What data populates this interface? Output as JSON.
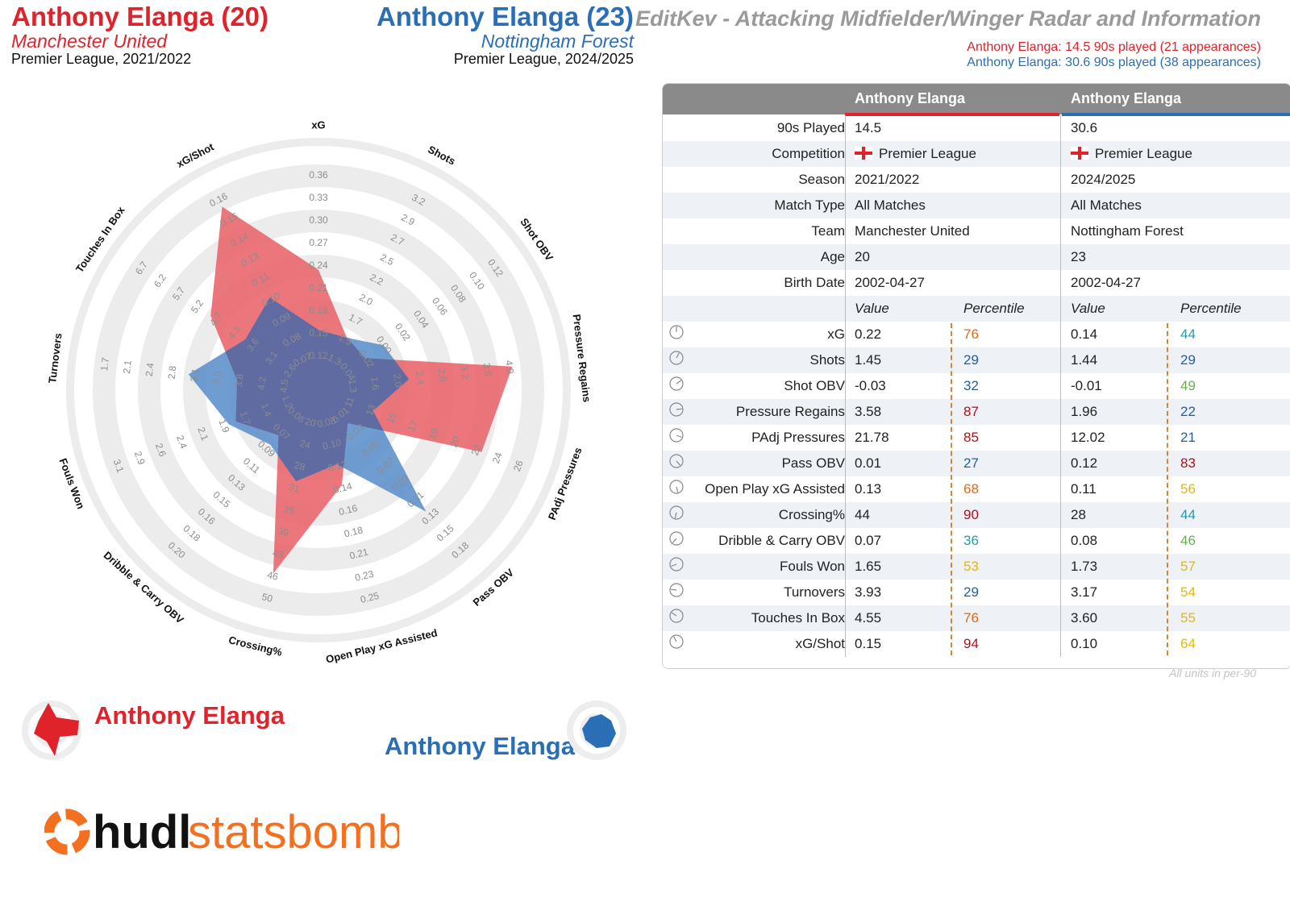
{
  "header": {
    "p1_name": "Anthony Elanga (20)",
    "p1_team": "Manchester United",
    "p1_comp": "Premier League, 2021/2022",
    "p2_name": "Anthony Elanga (23)",
    "p2_team": "Nottingham Forest",
    "p2_comp": "Premier League, 2024/2025",
    "subtitle": "EditKev - Attacking Midfielder/Winger Radar and Information",
    "p1_played": "Anthony Elanga: 14.5 90s played (21 appearances)",
    "p2_played": "Anthony Elanga: 30.6 90s played (38 appearances)"
  },
  "colors": {
    "player1": "#e0222b",
    "player2": "#2a6eb5",
    "fill1": "#e8646b",
    "fill2": "#5b8fcc",
    "overlap": "#5f6ba1"
  },
  "chart_data": {
    "type": "radar",
    "axes": [
      {
        "label": "xG",
        "ticks": [
          "0.12",
          "0.15",
          "0.18",
          "0.21",
          "0.24",
          "0.27",
          "0.30",
          "0.33",
          "0.36"
        ],
        "min": 0.09,
        "max": 0.39
      },
      {
        "label": "Shots",
        "ticks": [
          "1.3",
          "1.5",
          "1.7",
          "2.0",
          "2.2",
          "2.5",
          "2.7",
          "2.9",
          "3.2"
        ],
        "min": 1.05,
        "max": 3.45
      },
      {
        "label": "Shot OBV",
        "ticks": [
          "-0.04",
          "-0.02",
          "0.00",
          "0.02",
          "0.04",
          "0.06",
          "0.08",
          "0.10",
          "0.12"
        ],
        "min": -0.06,
        "max": 0.14
      },
      {
        "label": "Pressure Regains",
        "ticks": [
          "1.3",
          "1.6",
          "2.0",
          "2.4",
          "2.8",
          "3.2",
          "3.6",
          "4.0"
        ],
        "min": 0.9,
        "max": 4.4
      },
      {
        "label": "PAdj Pressures",
        "ticks": [
          "11",
          "13",
          "15",
          "17",
          "19",
          "20",
          "22",
          "24",
          "26"
        ],
        "min": 9,
        "max": 28
      },
      {
        "label": "Pass OBV",
        "ticks": [
          "0.01",
          "0.03",
          "0.05",
          "0.07",
          "0.09",
          "0.11",
          "0.13",
          "0.15",
          "0.18"
        ],
        "min": -0.01,
        "max": 0.2
      },
      {
        "label": "Open Play xG Assisted",
        "ticks": [
          "0.08",
          "0.10",
          "0.12",
          "0.14",
          "0.16",
          "0.18",
          "0.21",
          "0.23",
          "0.25"
        ],
        "min": 0.06,
        "max": 0.27
      },
      {
        "label": "Crossing%",
        "ticks": [
          "20",
          "24",
          "28",
          "31",
          "35",
          "39",
          "43",
          "46",
          "50"
        ],
        "min": 16,
        "max": 54
      },
      {
        "label": "Dribble & Carry OBV",
        "ticks": [
          "0.06",
          "0.07",
          "0.09",
          "0.11",
          "0.13",
          "0.15",
          "0.16",
          "0.18",
          "0.20"
        ],
        "min": 0.04,
        "max": 0.22
      },
      {
        "label": "Fouls Won",
        "ticks": [
          "1.2",
          "1.4",
          "1.7",
          "1.9",
          "2.1",
          "2.4",
          "2.6",
          "2.9",
          "3.1"
        ],
        "min": 0.95,
        "max": 3.35
      },
      {
        "label": "Turnovers",
        "ticks": [
          "4.5",
          "4.2",
          "3.8",
          "3.5",
          "3.1",
          "2.8",
          "2.4",
          "2.1",
          "1.7"
        ],
        "min": 4.85,
        "max": 1.35
      },
      {
        "label": "Touches In Box",
        "ticks": [
          "2.6",
          "3.1",
          "3.6",
          "4.1",
          "4.7",
          "5.2",
          "5.7",
          "6.2",
          "6.7"
        ],
        "min": 2.1,
        "max": 7.2
      },
      {
        "label": "xG/Shot",
        "ticks": [
          "0.07",
          "0.08",
          "0.09",
          "0.10",
          "0.11",
          "0.13",
          "0.14",
          "0.15",
          "0.16"
        ],
        "min": 0.06,
        "max": 0.17
      }
    ],
    "series": [
      {
        "name": "Anthony Elanga",
        "values": [
          0.22,
          1.45,
          -0.03,
          3.58,
          21.78,
          0.01,
          0.13,
          44,
          0.07,
          1.65,
          3.93,
          4.55,
          0.15
        ]
      },
      {
        "name": "Anthony Elanga",
        "values": [
          0.14,
          1.44,
          -0.01,
          1.96,
          12.02,
          0.12,
          0.11,
          28,
          0.08,
          1.73,
          3.17,
          3.6,
          0.1
        ]
      }
    ]
  },
  "table": {
    "col1": "Anthony Elanga",
    "col2": "Anthony Elanga",
    "info": [
      {
        "label": "90s Played",
        "v1": "14.5",
        "v2": "30.6"
      },
      {
        "label": "Competition",
        "v1": "Premier League",
        "v2": "Premier League",
        "flag": true
      },
      {
        "label": "Season",
        "v1": "2021/2022",
        "v2": "2024/2025"
      },
      {
        "label": "Match Type",
        "v1": "All Matches",
        "v2": "All Matches"
      },
      {
        "label": "Team",
        "v1": "Manchester United",
        "v2": "Nottingham Forest"
      },
      {
        "label": "Age",
        "v1": "20",
        "v2": "23"
      },
      {
        "label": "Birth Date",
        "v1": "2002-04-27",
        "v2": "2002-04-27"
      }
    ],
    "value_header": "Value",
    "percentile_header": "Percentile",
    "metrics": [
      {
        "label": "xG",
        "v1": "0.22",
        "p1": "76",
        "v2": "0.14",
        "p2": "44"
      },
      {
        "label": "Shots",
        "v1": "1.45",
        "p1": "29",
        "v2": "1.44",
        "p2": "29"
      },
      {
        "label": "Shot OBV",
        "v1": "-0.03",
        "p1": "32",
        "v2": "-0.01",
        "p2": "49"
      },
      {
        "label": "Pressure Regains",
        "v1": "3.58",
        "p1": "87",
        "v2": "1.96",
        "p2": "22"
      },
      {
        "label": "PAdj Pressures",
        "v1": "21.78",
        "p1": "85",
        "v2": "12.02",
        "p2": "21"
      },
      {
        "label": "Pass OBV",
        "v1": "0.01",
        "p1": "27",
        "v2": "0.12",
        "p2": "83"
      },
      {
        "label": "Open Play xG Assisted",
        "v1": "0.13",
        "p1": "68",
        "v2": "0.11",
        "p2": "56"
      },
      {
        "label": "Crossing%",
        "v1": "44",
        "p1": "90",
        "v2": "28",
        "p2": "44"
      },
      {
        "label": "Dribble & Carry OBV",
        "v1": "0.07",
        "p1": "36",
        "v2": "0.08",
        "p2": "46"
      },
      {
        "label": "Fouls Won",
        "v1": "1.65",
        "p1": "53",
        "v2": "1.73",
        "p2": "57"
      },
      {
        "label": "Turnovers",
        "v1": "3.93",
        "p1": "29",
        "v2": "3.17",
        "p2": "54"
      },
      {
        "label": "Touches In Box",
        "v1": "4.55",
        "p1": "76",
        "v2": "3.60",
        "p2": "55"
      },
      {
        "label": "xG/Shot",
        "v1": "0.15",
        "p1": "94",
        "v2": "0.10",
        "p2": "64"
      }
    ],
    "footnote": "All units in per-90"
  },
  "legend": {
    "p1": "Anthony Elanga",
    "p2": "Anthony Elanga"
  },
  "logo": {
    "text_a": "hudl",
    "text_b": "statsbomb"
  }
}
